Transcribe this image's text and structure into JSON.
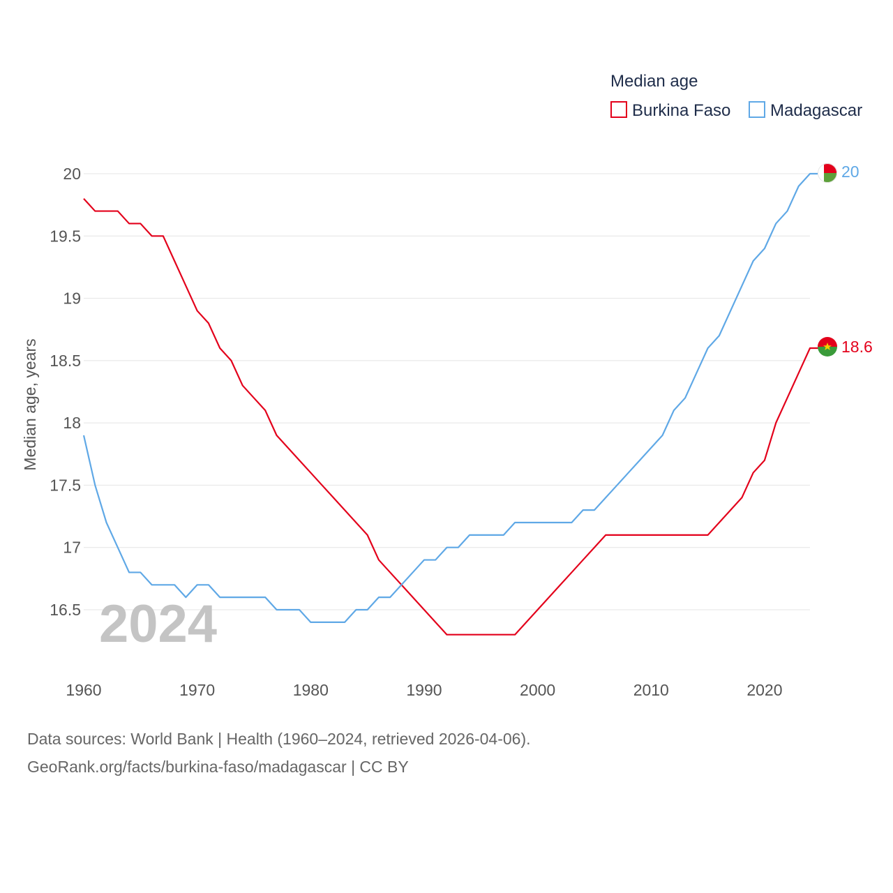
{
  "chart_data": {
    "type": "line",
    "ylabel": "Median age, years",
    "xlabel": "",
    "legend_title": "Median age",
    "legend_position": "top-right",
    "year_watermark": "2024",
    "xlim": [
      1960,
      2024
    ],
    "ylim": [
      16.0,
      20.2
    ],
    "x_ticks": [
      1960,
      1970,
      1980,
      1990,
      2000,
      2010,
      2020
    ],
    "x_tick_labels": [
      "1960",
      "1970",
      "1980",
      "1990",
      "2000",
      "2010",
      "2020"
    ],
    "y_ticks": [
      16.5,
      17,
      17.5,
      18,
      18.5,
      19,
      19.5,
      20
    ],
    "y_tick_labels": [
      "16.5",
      "17",
      "17.5",
      "18",
      "18.5",
      "19",
      "19.5",
      "20"
    ],
    "grid": true,
    "x": [
      1960,
      1961,
      1962,
      1963,
      1964,
      1965,
      1966,
      1967,
      1968,
      1969,
      1970,
      1971,
      1972,
      1973,
      1974,
      1975,
      1976,
      1977,
      1978,
      1979,
      1980,
      1981,
      1982,
      1983,
      1984,
      1985,
      1986,
      1987,
      1988,
      1989,
      1990,
      1991,
      1992,
      1993,
      1994,
      1995,
      1996,
      1997,
      1998,
      1999,
      2000,
      2001,
      2002,
      2003,
      2004,
      2005,
      2006,
      2007,
      2008,
      2009,
      2010,
      2011,
      2012,
      2013,
      2014,
      2015,
      2016,
      2017,
      2018,
      2019,
      2020,
      2021,
      2022,
      2023,
      2024
    ],
    "series": [
      {
        "name": "Burkina Faso",
        "color": "#e3001b",
        "end_label": "18.6",
        "flag": "burkina-faso-flag",
        "values": [
          19.8,
          19.7,
          19.7,
          19.7,
          19.6,
          19.6,
          19.5,
          19.5,
          19.3,
          19.1,
          18.9,
          18.8,
          18.6,
          18.5,
          18.3,
          18.2,
          18.1,
          17.9,
          17.8,
          17.7,
          17.6,
          17.5,
          17.4,
          17.3,
          17.2,
          17.1,
          16.9,
          16.8,
          16.7,
          16.6,
          16.5,
          16.4,
          16.3,
          16.3,
          16.3,
          16.3,
          16.3,
          16.3,
          16.3,
          16.4,
          16.5,
          16.6,
          16.7,
          16.8,
          16.9,
          17.0,
          17.1,
          17.1,
          17.1,
          17.1,
          17.1,
          17.1,
          17.1,
          17.1,
          17.1,
          17.1,
          17.2,
          17.3,
          17.4,
          17.6,
          17.7,
          18.0,
          18.2,
          18.4,
          18.6
        ]
      },
      {
        "name": "Madagascar",
        "color": "#5fa8e6",
        "end_label": "20",
        "flag": "madagascar-flag",
        "values": [
          17.9,
          17.5,
          17.2,
          17.0,
          16.8,
          16.8,
          16.7,
          16.7,
          16.7,
          16.6,
          16.7,
          16.7,
          16.6,
          16.6,
          16.6,
          16.6,
          16.6,
          16.5,
          16.5,
          16.5,
          16.4,
          16.4,
          16.4,
          16.4,
          16.5,
          16.5,
          16.6,
          16.6,
          16.7,
          16.8,
          16.9,
          16.9,
          17.0,
          17.0,
          17.1,
          17.1,
          17.1,
          17.1,
          17.2,
          17.2,
          17.2,
          17.2,
          17.2,
          17.2,
          17.3,
          17.3,
          17.4,
          17.5,
          17.6,
          17.7,
          17.8,
          17.9,
          18.1,
          18.2,
          18.4,
          18.6,
          18.7,
          18.9,
          19.1,
          19.3,
          19.4,
          19.6,
          19.7,
          19.9,
          20.0
        ]
      }
    ]
  },
  "footer": {
    "source_line1": "Data sources: World Bank | Health (1960–2024, retrieved 2026-04-06).",
    "source_line2": "GeoRank.org/facts/burkina-faso/madagascar | CC BY"
  }
}
